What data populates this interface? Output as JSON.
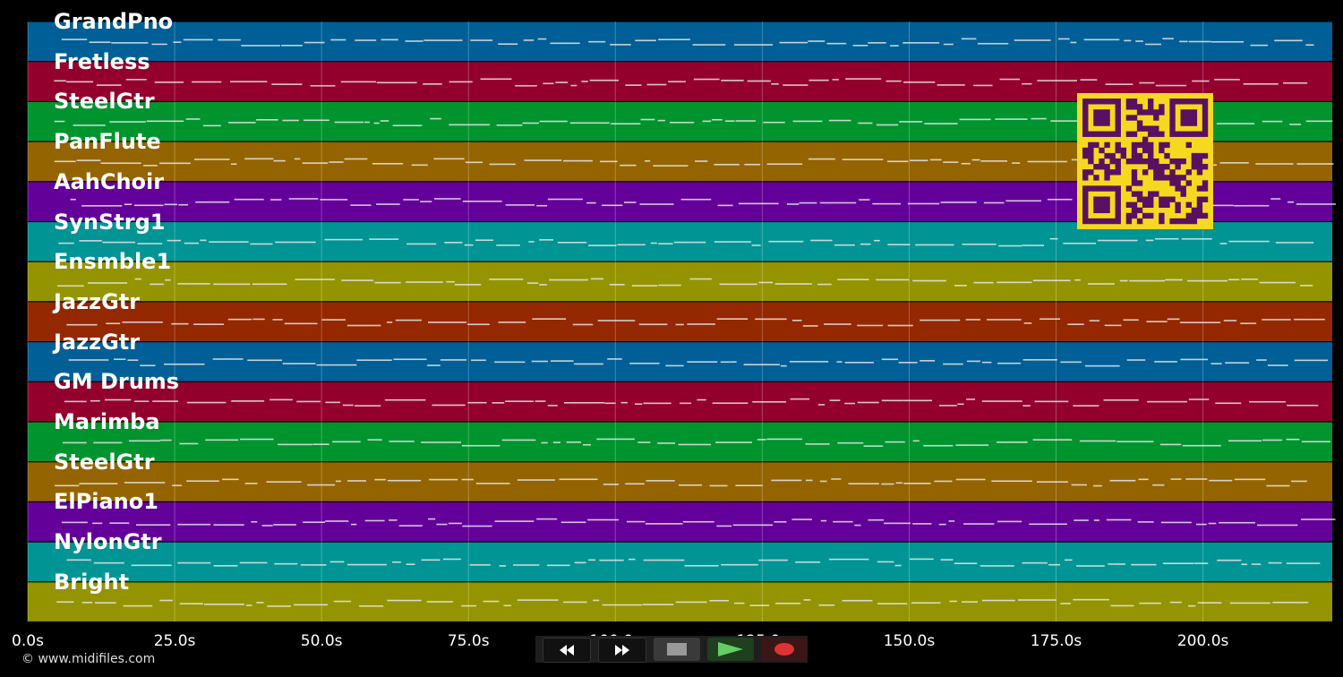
{
  "tracks": [
    {
      "name": "GrandPno",
      "color": "#005f96"
    },
    {
      "name": "Fretless",
      "color": "#94002e"
    },
    {
      "name": "SteelGtr",
      "color": "#00942e"
    },
    {
      "name": "PanFlute",
      "color": "#946400"
    },
    {
      "name": "AahChoir",
      "color": "#64009a"
    },
    {
      "name": "SynStrg1",
      "color": "#009494"
    },
    {
      "name": "Ensmble1",
      "color": "#949400"
    },
    {
      "name": "JazzGtr",
      "color": "#942800"
    },
    {
      "name": "JazzGtr",
      "color": "#005f96"
    },
    {
      "name": "GM Drums",
      "color": "#94002e"
    },
    {
      "name": "Marimba",
      "color": "#00942e"
    },
    {
      "name": "SteelGtr",
      "color": "#946400"
    },
    {
      "name": "ElPiano1",
      "color": "#64009a"
    },
    {
      "name": "NylonGtr",
      "color": "#009494"
    },
    {
      "name": "Bright",
      "color": "#949400"
    }
  ],
  "time_axis": {
    "unit": "s",
    "min": 0,
    "max": 222,
    "ticks": [
      {
        "value": 0,
        "label": "0.0s"
      },
      {
        "value": 25,
        "label": "25.0s"
      },
      {
        "value": 50,
        "label": "50.0s"
      },
      {
        "value": 75,
        "label": "75.0s"
      },
      {
        "value": 100,
        "label": "100.0s"
      },
      {
        "value": 125,
        "label": "125.0s"
      },
      {
        "value": 150,
        "label": "150.0s"
      },
      {
        "value": 175,
        "label": "175.0s"
      },
      {
        "value": 200,
        "label": "200.0s"
      }
    ]
  },
  "copyright": "© www.midifiles.com",
  "transport": {
    "rewind_icon": "rewind-icon",
    "fast_forward_icon": "fast-forward-icon",
    "stop_icon": "stop-icon",
    "play_icon": "play-icon",
    "record_icon": "record-icon"
  },
  "qr": {
    "fg": "#5a1060",
    "bg": "#f5d820"
  }
}
